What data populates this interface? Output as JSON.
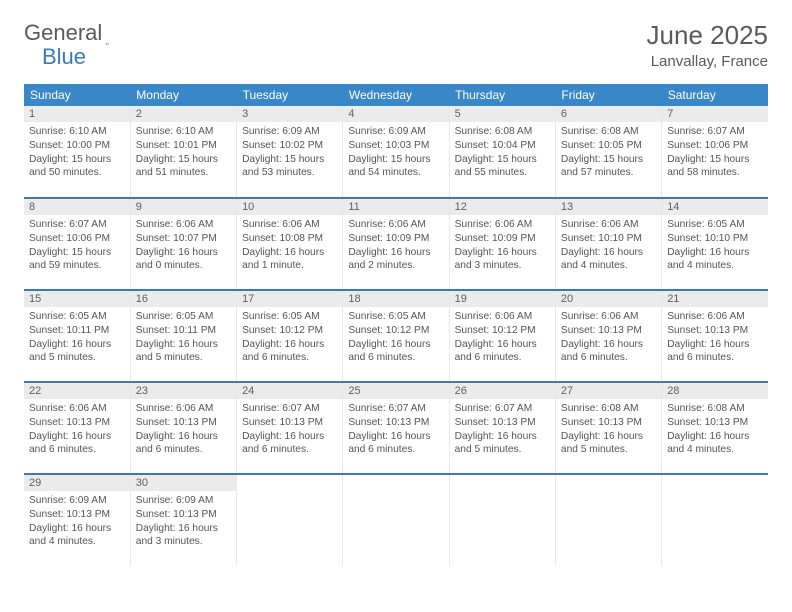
{
  "logo": {
    "general": "General",
    "blue": "Blue"
  },
  "header": {
    "month": "June 2025",
    "location": "Lanvallay, France"
  },
  "styling": {
    "brand_blue": "#3a87c7",
    "divider_blue": "#3a7ab8",
    "daynum_bg": "#ebebeb",
    "text_color": "#555555",
    "header_text": "#5a5a5a",
    "bg": "#ffffff",
    "dayhdr_fontsize": 12,
    "body_fontsize": 10.2,
    "month_fontsize": 26,
    "location_fontsize": 15
  },
  "dayNames": [
    "Sunday",
    "Monday",
    "Tuesday",
    "Wednesday",
    "Thursday",
    "Friday",
    "Saturday"
  ],
  "weeks": [
    [
      {
        "n": "1",
        "sr": "6:10 AM",
        "ss": "10:00 PM",
        "dl": "15 hours and 50 minutes."
      },
      {
        "n": "2",
        "sr": "6:10 AM",
        "ss": "10:01 PM",
        "dl": "15 hours and 51 minutes."
      },
      {
        "n": "3",
        "sr": "6:09 AM",
        "ss": "10:02 PM",
        "dl": "15 hours and 53 minutes."
      },
      {
        "n": "4",
        "sr": "6:09 AM",
        "ss": "10:03 PM",
        "dl": "15 hours and 54 minutes."
      },
      {
        "n": "5",
        "sr": "6:08 AM",
        "ss": "10:04 PM",
        "dl": "15 hours and 55 minutes."
      },
      {
        "n": "6",
        "sr": "6:08 AM",
        "ss": "10:05 PM",
        "dl": "15 hours and 57 minutes."
      },
      {
        "n": "7",
        "sr": "6:07 AM",
        "ss": "10:06 PM",
        "dl": "15 hours and 58 minutes."
      }
    ],
    [
      {
        "n": "8",
        "sr": "6:07 AM",
        "ss": "10:06 PM",
        "dl": "15 hours and 59 minutes."
      },
      {
        "n": "9",
        "sr": "6:06 AM",
        "ss": "10:07 PM",
        "dl": "16 hours and 0 minutes."
      },
      {
        "n": "10",
        "sr": "6:06 AM",
        "ss": "10:08 PM",
        "dl": "16 hours and 1 minute."
      },
      {
        "n": "11",
        "sr": "6:06 AM",
        "ss": "10:09 PM",
        "dl": "16 hours and 2 minutes."
      },
      {
        "n": "12",
        "sr": "6:06 AM",
        "ss": "10:09 PM",
        "dl": "16 hours and 3 minutes."
      },
      {
        "n": "13",
        "sr": "6:06 AM",
        "ss": "10:10 PM",
        "dl": "16 hours and 4 minutes."
      },
      {
        "n": "14",
        "sr": "6:05 AM",
        "ss": "10:10 PM",
        "dl": "16 hours and 4 minutes."
      }
    ],
    [
      {
        "n": "15",
        "sr": "6:05 AM",
        "ss": "10:11 PM",
        "dl": "16 hours and 5 minutes."
      },
      {
        "n": "16",
        "sr": "6:05 AM",
        "ss": "10:11 PM",
        "dl": "16 hours and 5 minutes."
      },
      {
        "n": "17",
        "sr": "6:05 AM",
        "ss": "10:12 PM",
        "dl": "16 hours and 6 minutes."
      },
      {
        "n": "18",
        "sr": "6:05 AM",
        "ss": "10:12 PM",
        "dl": "16 hours and 6 minutes."
      },
      {
        "n": "19",
        "sr": "6:06 AM",
        "ss": "10:12 PM",
        "dl": "16 hours and 6 minutes."
      },
      {
        "n": "20",
        "sr": "6:06 AM",
        "ss": "10:13 PM",
        "dl": "16 hours and 6 minutes."
      },
      {
        "n": "21",
        "sr": "6:06 AM",
        "ss": "10:13 PM",
        "dl": "16 hours and 6 minutes."
      }
    ],
    [
      {
        "n": "22",
        "sr": "6:06 AM",
        "ss": "10:13 PM",
        "dl": "16 hours and 6 minutes."
      },
      {
        "n": "23",
        "sr": "6:06 AM",
        "ss": "10:13 PM",
        "dl": "16 hours and 6 minutes."
      },
      {
        "n": "24",
        "sr": "6:07 AM",
        "ss": "10:13 PM",
        "dl": "16 hours and 6 minutes."
      },
      {
        "n": "25",
        "sr": "6:07 AM",
        "ss": "10:13 PM",
        "dl": "16 hours and 6 minutes."
      },
      {
        "n": "26",
        "sr": "6:07 AM",
        "ss": "10:13 PM",
        "dl": "16 hours and 5 minutes."
      },
      {
        "n": "27",
        "sr": "6:08 AM",
        "ss": "10:13 PM",
        "dl": "16 hours and 5 minutes."
      },
      {
        "n": "28",
        "sr": "6:08 AM",
        "ss": "10:13 PM",
        "dl": "16 hours and 4 minutes."
      }
    ],
    [
      {
        "n": "29",
        "sr": "6:09 AM",
        "ss": "10:13 PM",
        "dl": "16 hours and 4 minutes."
      },
      {
        "n": "30",
        "sr": "6:09 AM",
        "ss": "10:13 PM",
        "dl": "16 hours and 3 minutes."
      },
      null,
      null,
      null,
      null,
      null
    ]
  ],
  "labels": {
    "sunrise": "Sunrise:",
    "sunset": "Sunset:",
    "daylight": "Daylight:"
  }
}
